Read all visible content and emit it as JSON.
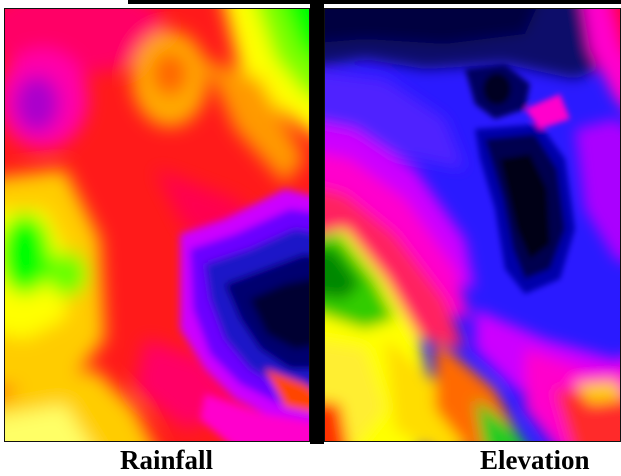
{
  "labels": {
    "rainfall": "Rainfall",
    "elevation": "Elevation"
  },
  "palette": {
    "rainfall": [
      "#00ff00",
      "#66ff00",
      "#ccff00",
      "#ffff00",
      "#ffcc00",
      "#ff9900",
      "#ff5a00",
      "#ff2a10",
      "#ff1030",
      "#ff0066",
      "#ff00cc",
      "#cc00ff",
      "#8000ff",
      "#3020ff",
      "#0000cc",
      "#000066"
    ],
    "elevation": [
      "#00cc00",
      "#66ff00",
      "#ccff00",
      "#ffff00",
      "#ffaa00",
      "#ff5500",
      "#ff0000",
      "#ff0066",
      "#ff00cc",
      "#ff00ff",
      "#cc00ff",
      "#8800ff",
      "#4400ff",
      "#1010ff",
      "#0000aa",
      "#000044"
    ]
  }
}
